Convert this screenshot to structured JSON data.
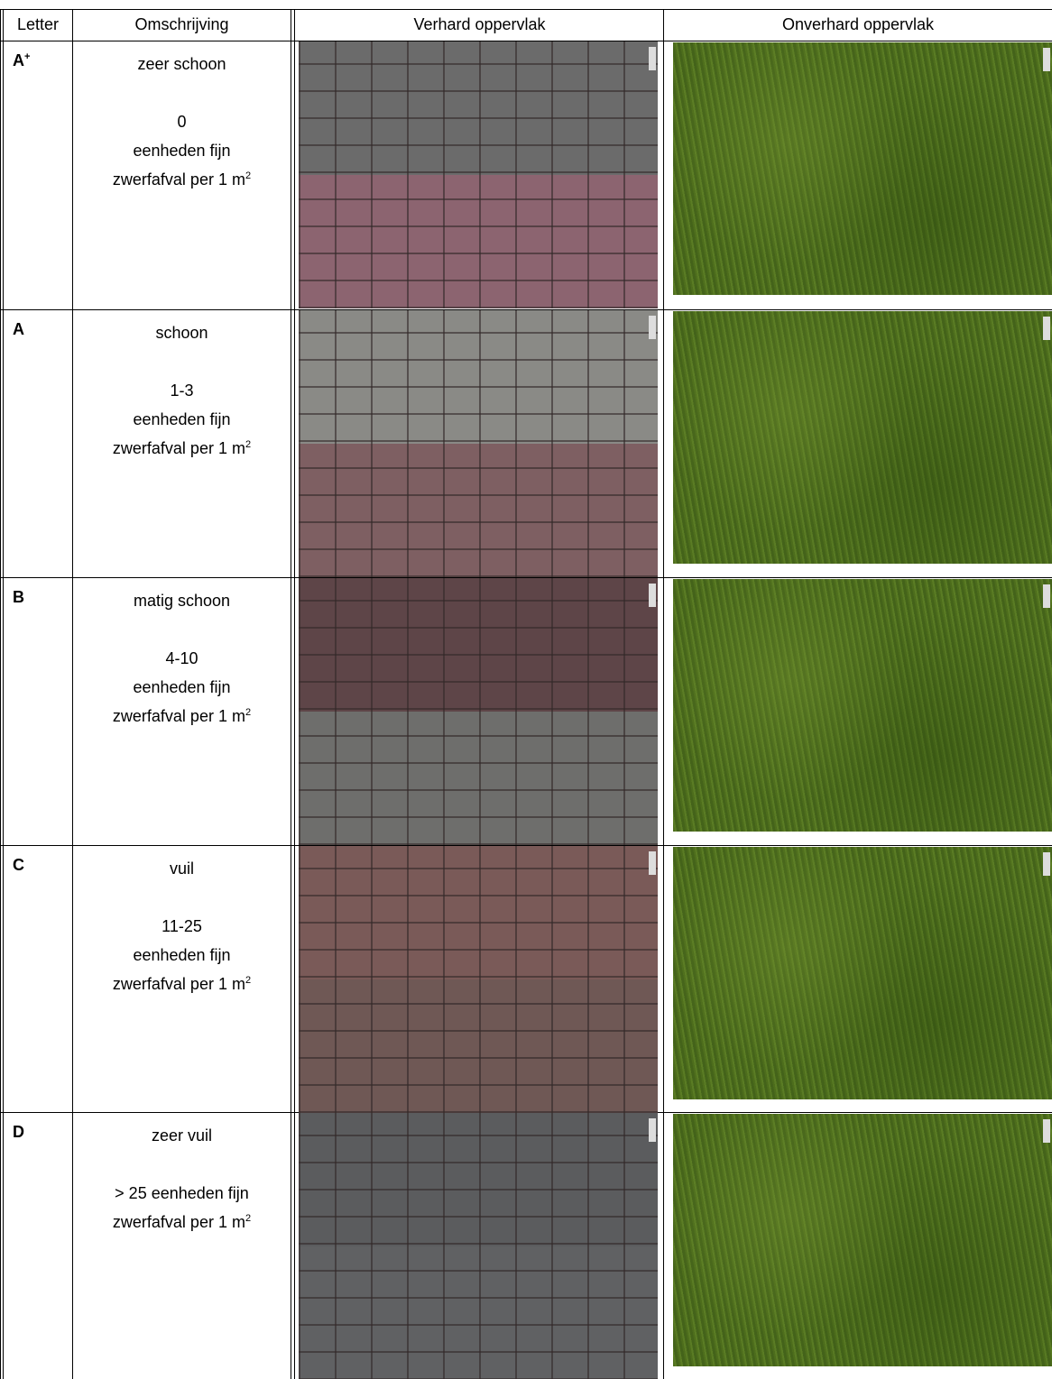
{
  "table": {
    "headers": [
      "Letter",
      "Omschrijving",
      "Verhard oppervlak",
      "Onverhard oppervlak"
    ],
    "rows": [
      {
        "letter": "A",
        "letter_sup": "+",
        "lines": [
          "zeer schoon",
          "",
          "0",
          "eenheden fijn",
          "zwerfafval per 1 m"
        ],
        "superscript": "2"
      },
      {
        "letter": "A",
        "lines": [
          "schoon",
          "",
          "1-3",
          "eenheden fijn",
          "zwerfafval per 1 m"
        ],
        "superscript": "2"
      },
      {
        "letter": "B",
        "lines": [
          "matig schoon",
          "",
          "4-10",
          "eenheden fijn",
          "zwerfafval per 1 m"
        ],
        "superscript": "2"
      },
      {
        "letter": "C",
        "lines": [
          "vuil",
          "",
          "11-25",
          "eenheden fijn",
          "zwerfafval per 1 m"
        ],
        "superscript": "2"
      },
      {
        "letter": "D",
        "lines": [
          "zeer vuil",
          "",
          "> 25 eenheden fijn",
          "zwerfafval per 1 m"
        ],
        "superscript": "2"
      }
    ]
  }
}
